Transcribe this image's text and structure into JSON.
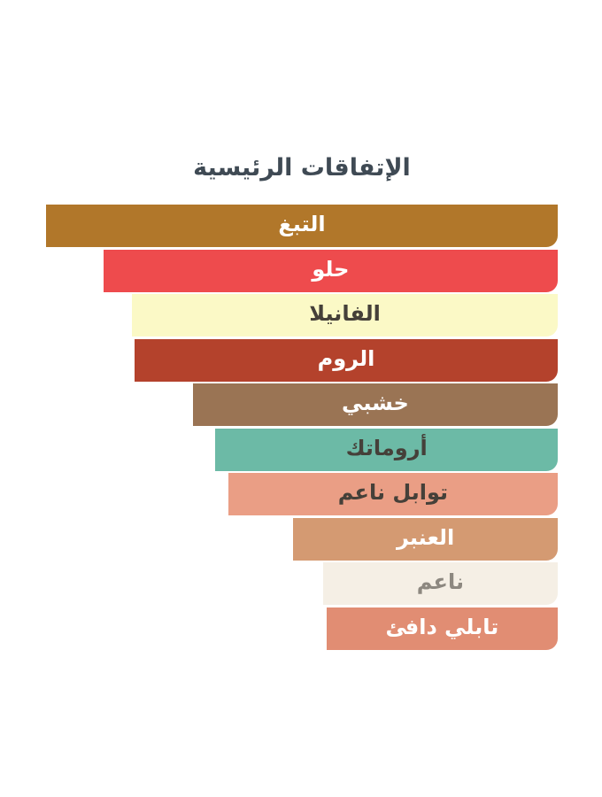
{
  "page": {
    "background": "#ffffff",
    "title_color": "#3f4a54",
    "dark_label_color": "#454039",
    "muted_label_color": "#8d8880"
  },
  "chart_data": {
    "type": "bar",
    "orientation": "horizontal",
    "direction": "rtl",
    "title": "الإتفاقات الرئيسية",
    "legend": "none",
    "grid": false,
    "axis_labels": "none",
    "value_unit": "percent-of-max-width",
    "categories": [
      "التبغ",
      "حلو",
      "الفانيلا",
      "الروم",
      "خشبي",
      "أروماتك",
      "توابل ناعم",
      "العنبر",
      "ناعم",
      "تابلي دافئ"
    ],
    "values": [
      100,
      88.8,
      83.2,
      82.7,
      71.3,
      66.9,
      64.4,
      51.7,
      45.9,
      45.2
    ],
    "bars": [
      {
        "label": "التبغ",
        "value_pct": 100,
        "color": "#b1772a",
        "text_color": "#ffffff"
      },
      {
        "label": "حلو",
        "value_pct": 88.8,
        "color": "#ee4b4d",
        "text_color": "#ffffff"
      },
      {
        "label": "الفانيلا",
        "value_pct": 83.2,
        "color": "#fbf9c6",
        "text_color": "#454039"
      },
      {
        "label": "الروم",
        "value_pct": 82.7,
        "color": "#b4422c",
        "text_color": "#ffffff"
      },
      {
        "label": "خشبي",
        "value_pct": 71.3,
        "color": "#9a7454",
        "text_color": "#ffffff"
      },
      {
        "label": "أروماتك",
        "value_pct": 66.9,
        "color": "#6cbaa6",
        "text_color": "#454039"
      },
      {
        "label": "توابل ناعم",
        "value_pct": 64.4,
        "color": "#ea9e85",
        "text_color": "#454039"
      },
      {
        "label": "العنبر",
        "value_pct": 51.7,
        "color": "#d49a72",
        "text_color": "#ffffff"
      },
      {
        "label": "ناعم",
        "value_pct": 45.9,
        "color": "#f5efe5",
        "text_color": "#8d8880"
      },
      {
        "label": "تابلي دافئ",
        "value_pct": 45.2,
        "color": "#e18d73",
        "text_color": "#ffffff"
      }
    ]
  }
}
